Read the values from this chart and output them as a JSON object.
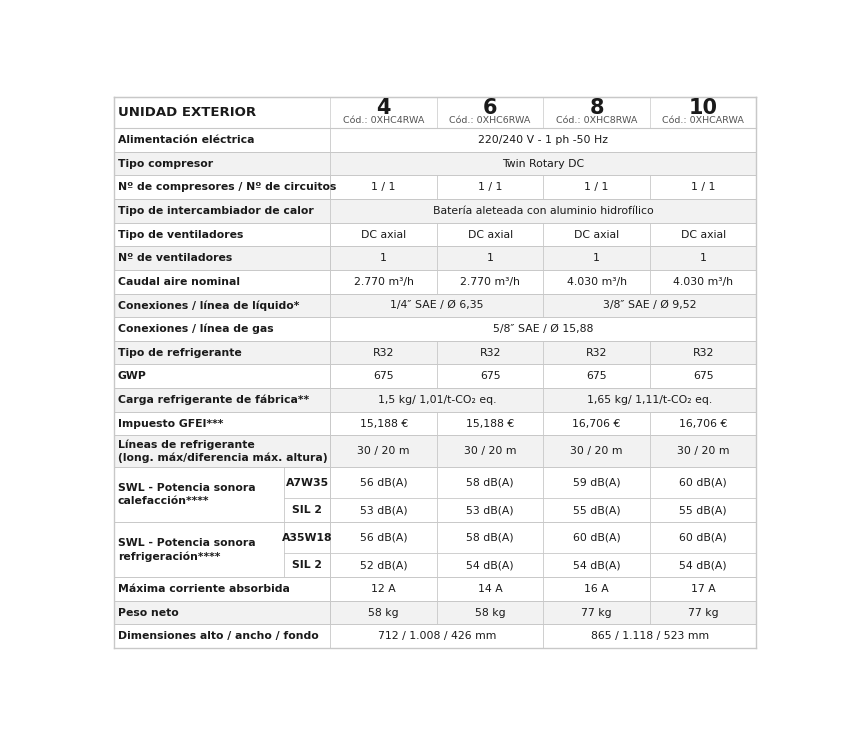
{
  "col_headers": [
    {
      "num": "4",
      "cod": "Cód.: 0XHC4RWA"
    },
    {
      "num": "6",
      "cod": "Cód.: 0XHC6RWA"
    },
    {
      "num": "8",
      "cod": "Cód.: 0XHC8RWA"
    },
    {
      "num": "10",
      "cod": "Cód.: 0XHCARWA"
    }
  ],
  "rows": [
    {
      "label": "Alimentación eléctrica",
      "type": "span4",
      "sublabel": "",
      "values": [
        "220/240 V - 1 ph -50 Hz"
      ]
    },
    {
      "label": "Tipo compresor",
      "type": "span4",
      "sublabel": "",
      "values": [
        "Twin Rotary DC"
      ]
    },
    {
      "label": "Nº de compresores / Nº de circuitos",
      "type": "individual",
      "sublabel": "",
      "values": [
        "1 / 1",
        "1 / 1",
        "1 / 1",
        "1 / 1"
      ]
    },
    {
      "label": "Tipo de intercambiador de calor",
      "type": "span4",
      "sublabel": "",
      "values": [
        "Batería aleteada con aluminio hidrofílico"
      ]
    },
    {
      "label": "Tipo de ventiladores",
      "type": "individual",
      "sublabel": "",
      "values": [
        "DC axial",
        "DC axial",
        "DC axial",
        "DC axial"
      ]
    },
    {
      "label": "Nº de ventiladores",
      "type": "individual",
      "sublabel": "",
      "values": [
        "1",
        "1",
        "1",
        "1"
      ]
    },
    {
      "label": "Caudal aire nominal",
      "type": "individual",
      "sublabel": "",
      "values": [
        "2.770 m³/h",
        "2.770 m³/h",
        "4.030 m³/h",
        "4.030 m³/h"
      ]
    },
    {
      "label": "Conexiones / línea de líquido*",
      "type": "span2x2",
      "sublabel": "",
      "values": [
        "1/4″ SAE / Ø 6,35",
        "3/8″ SAE / Ø 9,52"
      ]
    },
    {
      "label": "Conexiones / línea de gas",
      "type": "span4",
      "sublabel": "",
      "values": [
        "5/8″ SAE / Ø 15,88"
      ]
    },
    {
      "label": "Tipo de refrigerante",
      "type": "individual",
      "sublabel": "",
      "values": [
        "R32",
        "R32",
        "R32",
        "R32"
      ]
    },
    {
      "label": "GWP",
      "type": "individual",
      "sublabel": "",
      "values": [
        "675",
        "675",
        "675",
        "675"
      ]
    },
    {
      "label": "Carga refrigerante de fábrica**",
      "type": "span2x2",
      "sublabel": "",
      "values": [
        "1,5 kg/ 1,01/t-CO₂ eq.",
        "1,65 kg/ 1,11/t-CO₂ eq."
      ]
    },
    {
      "label": "Impuesto GFEI***",
      "type": "individual",
      "sublabel": "",
      "values": [
        "15,188 €",
        "15,188 €",
        "16,706 €",
        "16,706 €"
      ]
    },
    {
      "label": "Líneas de refrigerante\n(long. máx/diferencia máx. altura)",
      "type": "individual",
      "sublabel": "",
      "values": [
        "30 / 20 m",
        "30 / 20 m",
        "30 / 20 m",
        "30 / 20 m"
      ]
    },
    {
      "label": "SWL - Potencia sonora\ncalefacción****",
      "type": "subrow_top",
      "sublabel": "A7W35",
      "values": [
        "56 dB(A)",
        "58 dB(A)",
        "59 dB(A)",
        "60 dB(A)"
      ]
    },
    {
      "label": "",
      "type": "subrow_bot",
      "sublabel": "SIL 2",
      "values": [
        "53 dB(A)",
        "53 dB(A)",
        "55 dB(A)",
        "55 dB(A)"
      ]
    },
    {
      "label": "SWL - Potencia sonora\nrefrigeración****",
      "type": "subrow_top",
      "sublabel": "A35W18",
      "values": [
        "56 dB(A)",
        "58 dB(A)",
        "60 dB(A)",
        "60 dB(A)"
      ]
    },
    {
      "label": "",
      "type": "subrow_bot",
      "sublabel": "SIL 2",
      "values": [
        "52 dB(A)",
        "54 dB(A)",
        "54 dB(A)",
        "54 dB(A)"
      ]
    },
    {
      "label": "Máxima corriente absorbida",
      "type": "individual",
      "sublabel": "",
      "values": [
        "12 A",
        "14 A",
        "16 A",
        "17 A"
      ]
    },
    {
      "label": "Peso neto",
      "type": "individual",
      "sublabel": "",
      "values": [
        "58 kg",
        "58 kg",
        "77 kg",
        "77 kg"
      ]
    },
    {
      "label": "Dimensiones alto / ancho / fondo",
      "type": "span2x2",
      "sublabel": "",
      "values": [
        "712 / 1.008 / 426 mm",
        "865 / 1.118 / 523 mm"
      ]
    }
  ],
  "border_color": "#c8c8c8",
  "bg_white": "#ffffff",
  "bg_gray": "#f2f2f2",
  "text_dark": "#1a1a1a",
  "text_gray": "#555555",
  "header_bg": "#ffffff"
}
